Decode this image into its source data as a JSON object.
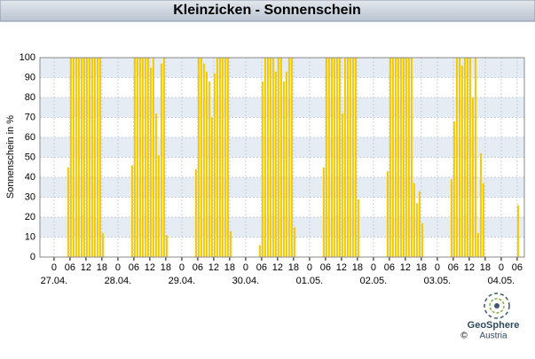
{
  "chart_data": {
    "type": "bar",
    "title": "Kleinzicken - Sonnenschein",
    "ylabel": "Sonnenschein in %",
    "color": "#f5c800",
    "x": [
      5,
      6,
      7,
      8,
      9,
      10,
      11,
      12,
      13,
      14,
      15,
      16,
      17,
      18,
      29,
      30,
      31,
      32,
      33,
      34,
      35,
      36,
      37,
      38,
      39,
      40,
      41,
      42,
      53,
      54,
      55,
      56,
      57,
      58,
      59,
      60,
      61,
      62,
      63,
      64,
      65,
      66,
      77,
      78,
      79,
      80,
      81,
      82,
      83,
      84,
      85,
      86,
      87,
      88,
      89,
      90,
      101,
      102,
      103,
      104,
      105,
      106,
      107,
      108,
      109,
      110,
      111,
      112,
      113,
      114,
      125,
      126,
      127,
      128,
      129,
      130,
      131,
      132,
      133,
      134,
      135,
      136,
      137,
      138,
      149,
      150,
      151,
      152,
      153,
      154,
      155,
      156,
      157,
      158,
      159,
      160,
      161,
      174
    ],
    "values": [
      45,
      100,
      100,
      100,
      100,
      100,
      100,
      100,
      100,
      100,
      100,
      100,
      100,
      12,
      46,
      100,
      100,
      100,
      100,
      100,
      100,
      95,
      100,
      72,
      51,
      97,
      100,
      11,
      44,
      100,
      100,
      97,
      93,
      88,
      70,
      92,
      100,
      100,
      100,
      100,
      100,
      13,
      6,
      88,
      100,
      100,
      100,
      100,
      93,
      100,
      100,
      88,
      93,
      100,
      100,
      15,
      45,
      100,
      100,
      100,
      100,
      100,
      100,
      72,
      100,
      100,
      100,
      100,
      100,
      29,
      43,
      100,
      100,
      100,
      100,
      100,
      100,
      100,
      100,
      100,
      37,
      27,
      33,
      17,
      39,
      68,
      100,
      100,
      96,
      100,
      100,
      100,
      80,
      100,
      12,
      52,
      37,
      26
    ],
    "xlim": [
      -5.3,
      176.7
    ],
    "xticks": [
      0,
      {
        "value": 6,
        "label": "06"
      },
      12,
      18,
      {
        "value": 24,
        "label": "0"
      },
      {
        "value": 30,
        "label": "06"
      },
      {
        "value": 36,
        "label": "12"
      },
      {
        "value": 42,
        "label": "18"
      },
      {
        "value": 48,
        "label": "0"
      },
      {
        "value": 54,
        "label": "06"
      },
      {
        "value": 60,
        "label": "12"
      },
      {
        "value": 66,
        "label": "18"
      },
      {
        "value": 72,
        "label": "0"
      },
      {
        "value": 78,
        "label": "06"
      },
      {
        "value": 84,
        "label": "12"
      },
      {
        "value": 90,
        "label": "18"
      },
      {
        "value": 96,
        "label": "0"
      },
      {
        "value": 102,
        "label": "06"
      },
      {
        "value": 108,
        "label": "12"
      },
      {
        "value": 114,
        "label": "18"
      },
      {
        "value": 120,
        "label": "0"
      },
      {
        "value": 126,
        "label": "06"
      },
      {
        "value": 132,
        "label": "12"
      },
      {
        "value": 138,
        "label": "18"
      },
      {
        "value": 144,
        "label": "0"
      },
      {
        "value": 150,
        "label": "06"
      },
      {
        "value": 156,
        "label": "12"
      },
      {
        "value": 162,
        "label": "18"
      },
      {
        "value": 168,
        "label": "0"
      },
      {
        "value": 174,
        "label": "06"
      }
    ],
    "date_labels": [
      {
        "value": 0,
        "label": "27.04."
      },
      {
        "value": 24,
        "label": "28.04."
      },
      {
        "value": 48,
        "label": "29.04."
      },
      {
        "value": 72,
        "label": "30.04."
      },
      {
        "value": 96,
        "label": "01.05."
      },
      {
        "value": 120,
        "label": "02.05."
      },
      {
        "value": 144,
        "label": "03.05."
      },
      {
        "value": 168,
        "label": "04.05."
      }
    ],
    "ylim": [
      0,
      100
    ],
    "yticks": [
      0,
      10,
      20,
      30,
      40,
      50,
      60,
      70,
      80,
      90,
      100
    ],
    "grid": true,
    "logo": {
      "name": "GeoSphere",
      "sub": "Austria",
      "copyright": "©"
    }
  }
}
